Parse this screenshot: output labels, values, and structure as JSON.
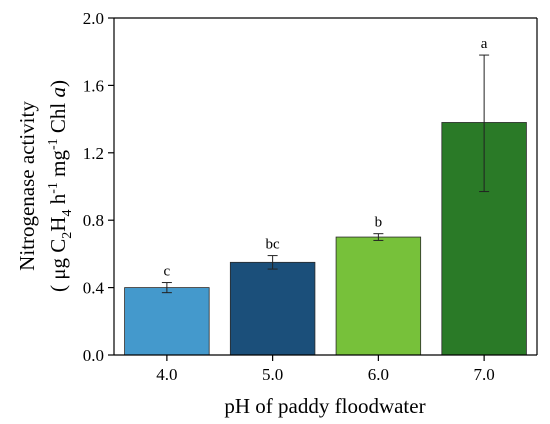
{
  "chart_data": {
    "type": "bar",
    "categories": [
      "4.0",
      "5.0",
      "6.0",
      "7.0"
    ],
    "values": [
      0.4,
      0.55,
      0.7,
      1.38
    ],
    "error_bars": [
      {
        "low": 0.37,
        "high": 0.43
      },
      {
        "low": 0.51,
        "high": 0.59
      },
      {
        "low": 0.68,
        "high": 0.72
      },
      {
        "low": 0.97,
        "high": 1.78
      }
    ],
    "significance_labels": [
      "c",
      "bc",
      "b",
      "a"
    ],
    "colors": [
      "#4499cc",
      "#1b4f7a",
      "#77c13a",
      "#2a7a27"
    ],
    "xlabel": "pH of paddy floodwater",
    "ylabel": {
      "line1": "Nitrogenase activity",
      "line2_text_a": "( μg C",
      "line2_sub_1": "2",
      "line2_text_b": "H",
      "line2_sub_2": "4",
      "line2_text_c": " h",
      "line2_sup_1": "-1",
      "line2_text_d": " mg",
      "line2_sup_2": "-1",
      "line2_text_e": " Chl ",
      "line2_italic": "a",
      "line2_text_f": ")"
    },
    "ylim": [
      0.0,
      2.0
    ],
    "yticks": [
      "0.0",
      "0.4",
      "0.8",
      "1.2",
      "1.6",
      "2.0"
    ],
    "grid": false
  }
}
